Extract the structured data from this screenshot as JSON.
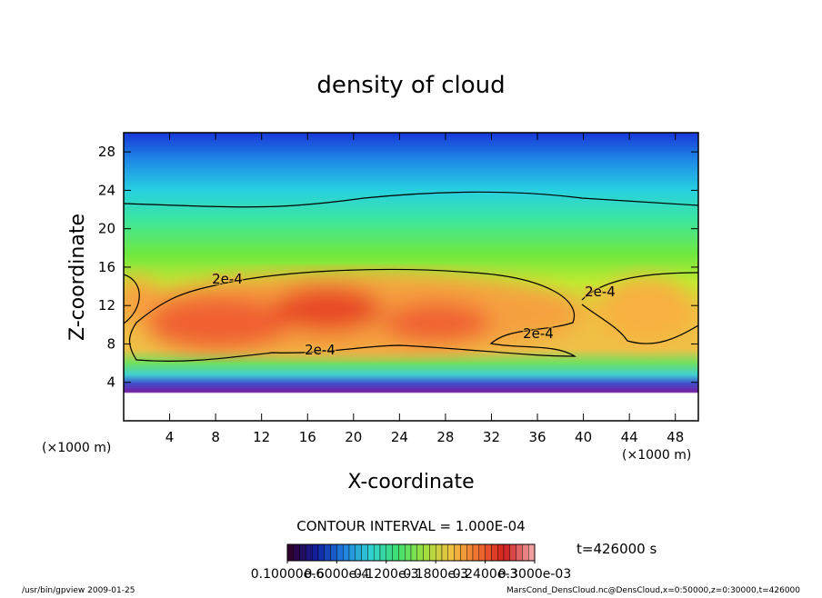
{
  "chart_data": {
    "type": "contour",
    "title": "density of cloud",
    "x_label": "X-coordinate",
    "y_label": "Z-coordinate",
    "x_unit": "(×1000 m)",
    "y_unit": "(×1000 m)",
    "xlim": [
      0,
      50
    ],
    "ylim": [
      0,
      30
    ],
    "xticks": [
      4,
      8,
      12,
      16,
      20,
      24,
      28,
      32,
      36,
      40,
      44,
      48
    ],
    "yticks": [
      4,
      8,
      12,
      16,
      20,
      24,
      28
    ],
    "contour_labels": [
      "2e-4",
      "2e-4",
      "2e-4",
      "2e-4"
    ],
    "contour_interval": "CONTOUR INTERVAL = 1.000E-04",
    "time_label": "t=426000 s",
    "colorbar_ticks": [
      {
        "value": 1e-07,
        "label": "0.10000e-6"
      },
      {
        "value": 6e-05,
        "label": "0.6000e-4"
      },
      {
        "value": 0.00012,
        "label": "0.1200e-3"
      },
      {
        "value": 0.00018,
        "label": "0.1800e-3"
      },
      {
        "value": 0.00024,
        "label": "0.2400e-3"
      },
      {
        "value": 0.0003,
        "label": "0.3000e-03"
      }
    ],
    "colorbar_lim": [
      1e-07,
      0.0003
    ],
    "footer_left": "/usr/bin/gpview  2009-01-25",
    "footer_right": "MarsCond_DensCloud.nc@DensCloud,x=0:50000,z=0:30000,t=426000"
  }
}
